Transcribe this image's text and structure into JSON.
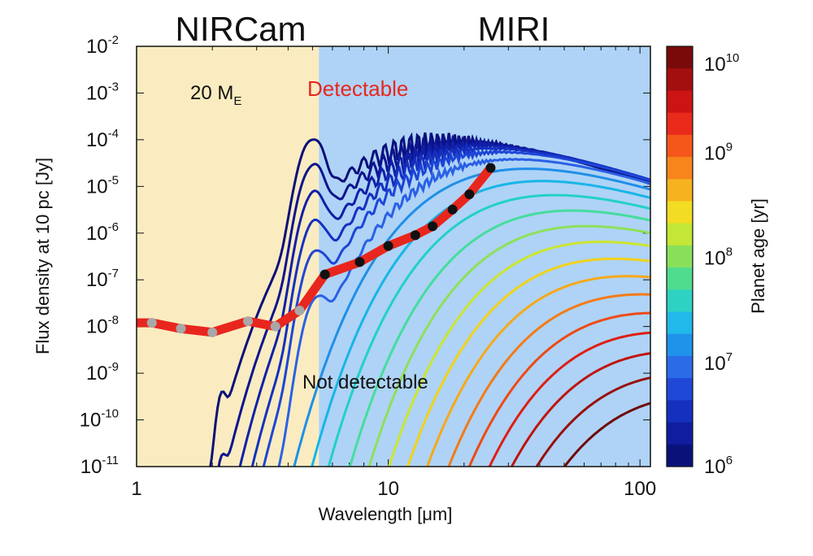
{
  "chart_data": {
    "type": "line",
    "xlabel": "Wavelength [μm]",
    "ylabel": "Flux density at 10 pc [Jy]",
    "x_scale": "log",
    "y_scale": "log",
    "xlim": [
      1,
      110
    ],
    "ylim": [
      1e-11,
      0.01
    ],
    "x_ticks": [
      {
        "value": 1,
        "label": "1"
      },
      {
        "value": 10,
        "label": "10"
      },
      {
        "value": 100,
        "label": "100"
      }
    ],
    "y_ticks": [
      {
        "value": 0.01,
        "label": "10",
        "exp": "-2"
      },
      {
        "value": 0.001,
        "label": "10",
        "exp": "-3"
      },
      {
        "value": 0.0001,
        "label": "10",
        "exp": "-4"
      },
      {
        "value": 1e-05,
        "label": "10",
        "exp": "-5"
      },
      {
        "value": 1e-06,
        "label": "10",
        "exp": "-6"
      },
      {
        "value": 1e-07,
        "label": "10",
        "exp": "-7"
      },
      {
        "value": 1e-08,
        "label": "10",
        "exp": "-8"
      },
      {
        "value": 1e-09,
        "label": "10",
        "exp": "-9"
      },
      {
        "value": 1e-10,
        "label": "10",
        "exp": "-10"
      },
      {
        "value": 1e-11,
        "label": "10",
        "exp": "-11"
      }
    ],
    "bands": [
      {
        "label": "NIRCam",
        "x_range": [
          1,
          5.3
        ],
        "color": "#faecc0"
      },
      {
        "label": "MIRI",
        "x_range": [
          5.3,
          110
        ],
        "color": "#aed3f6"
      }
    ],
    "annotations": {
      "mass": {
        "label": "20 M",
        "sub": "E"
      },
      "detectable": "Detectable",
      "not_detectable": "Not detectable"
    },
    "sensitivity_nircam": [
      {
        "x": 1.15,
        "y": 1.2e-08
      },
      {
        "x": 1.5,
        "y": 9e-09
      },
      {
        "x": 2.0,
        "y": 7.5e-09
      },
      {
        "x": 2.77,
        "y": 1.3e-08
      },
      {
        "x": 3.56,
        "y": 1e-08
      },
      {
        "x": 4.44,
        "y": 2.2e-08
      }
    ],
    "sensitivity_miri": [
      {
        "x": 5.6,
        "y": 1.3e-07
      },
      {
        "x": 7.7,
        "y": 2.4e-07
      },
      {
        "x": 10.0,
        "y": 5.3e-07
      },
      {
        "x": 12.8,
        "y": 9e-07
      },
      {
        "x": 15.0,
        "y": 1.4e-06
      },
      {
        "x": 18.0,
        "y": 3.2e-06
      },
      {
        "x": 21.0,
        "y": 6.8e-06
      },
      {
        "x": 25.5,
        "y": 2.5e-05
      }
    ],
    "series": [
      {
        "age": 1000000.0,
        "peak_flux": 9e-05,
        "lambda_peak": 14,
        "color": "#0b0f7a"
      },
      {
        "age": 2000000.0,
        "peak_flux": 8e-05,
        "lambda_peak": 16,
        "color": "#0d148f"
      },
      {
        "age": 3000000.0,
        "peak_flux": 7e-05,
        "lambda_peak": 18,
        "color": "#1020a8"
      },
      {
        "age": 5000000.0,
        "peak_flux": 6e-05,
        "lambda_peak": 20,
        "color": "#1530c0"
      },
      {
        "age": 8000000.0,
        "peak_flux": 5e-05,
        "lambda_peak": 22,
        "color": "#1d45d6"
      },
      {
        "age": 12000000.0,
        "peak_flux": 3.5e-05,
        "lambda_peak": 25,
        "color": "#2a60e6"
      },
      {
        "age": 18000000.0,
        "peak_flux": 2.2e-05,
        "lambda_peak": 28,
        "color": "#1f8fe8"
      },
      {
        "age": 27000000.0,
        "peak_flux": 1.2e-05,
        "lambda_peak": 32,
        "color": "#18b5e6"
      },
      {
        "age": 40000000.0,
        "peak_flux": 6e-06,
        "lambda_peak": 36,
        "color": "#22d0c8"
      },
      {
        "age": 60000000.0,
        "peak_flux": 2.8e-06,
        "lambda_peak": 42,
        "color": "#45dd9c"
      },
      {
        "age": 90000000.0,
        "peak_flux": 1.3e-06,
        "lambda_peak": 48,
        "color": "#8ee05a"
      },
      {
        "age": 130000000.0,
        "peak_flux": 6e-07,
        "lambda_peak": 55,
        "color": "#cbe52e"
      },
      {
        "age": 200000000.0,
        "peak_flux": 2.6e-07,
        "lambda_peak": 62,
        "color": "#f2d21a"
      },
      {
        "age": 300000000.0,
        "peak_flux": 1.1e-07,
        "lambda_peak": 70,
        "color": "#f7a818"
      },
      {
        "age": 500000000.0,
        "peak_flux": 4.5e-08,
        "lambda_peak": 80,
        "color": "#f57a16"
      },
      {
        "age": 800000000.0,
        "peak_flux": 1.8e-08,
        "lambda_peak": 90,
        "color": "#ee4a14"
      },
      {
        "age": 1300000000.0,
        "peak_flux": 7e-09,
        "lambda_peak": 100,
        "color": "#de1e14"
      },
      {
        "age": 2000000000.0,
        "peak_flux": 2.7e-09,
        "lambda_peak": 112,
        "color": "#c0140f"
      },
      {
        "age": 4000000000.0,
        "peak_flux": 9e-10,
        "lambda_peak": 125,
        "color": "#98100c"
      },
      {
        "age": 8000000000.0,
        "peak_flux": 3e-10,
        "lambda_peak": 140,
        "color": "#700808"
      }
    ],
    "colorbar": {
      "label": "Planet age [yr]",
      "range": [
        1000000.0,
        10000000000.0
      ],
      "ticks": [
        {
          "value": 10000000000.0,
          "label": "10",
          "exp": "10"
        },
        {
          "value": 1000000000.0,
          "label": "10",
          "exp": "9"
        },
        {
          "value": 100000000.0,
          "label": "10",
          "exp": "8"
        },
        {
          "value": 10000000.0,
          "label": "10",
          "exp": "7"
        },
        {
          "value": 1000000.0,
          "label": "10",
          "exp": "6"
        }
      ],
      "colors_top_to_bottom": [
        "#7a0a0a",
        "#a30f0f",
        "#cc1414",
        "#ea2a1a",
        "#f5571a",
        "#f7851c",
        "#f6b21f",
        "#f2dc24",
        "#c4e636",
        "#88e05a",
        "#4fdc8f",
        "#2ed2c2",
        "#21b8ea",
        "#1f93ea",
        "#2a6ce8",
        "#2048d8",
        "#152fbf",
        "#0f1d9e",
        "#0a127a"
      ]
    }
  }
}
